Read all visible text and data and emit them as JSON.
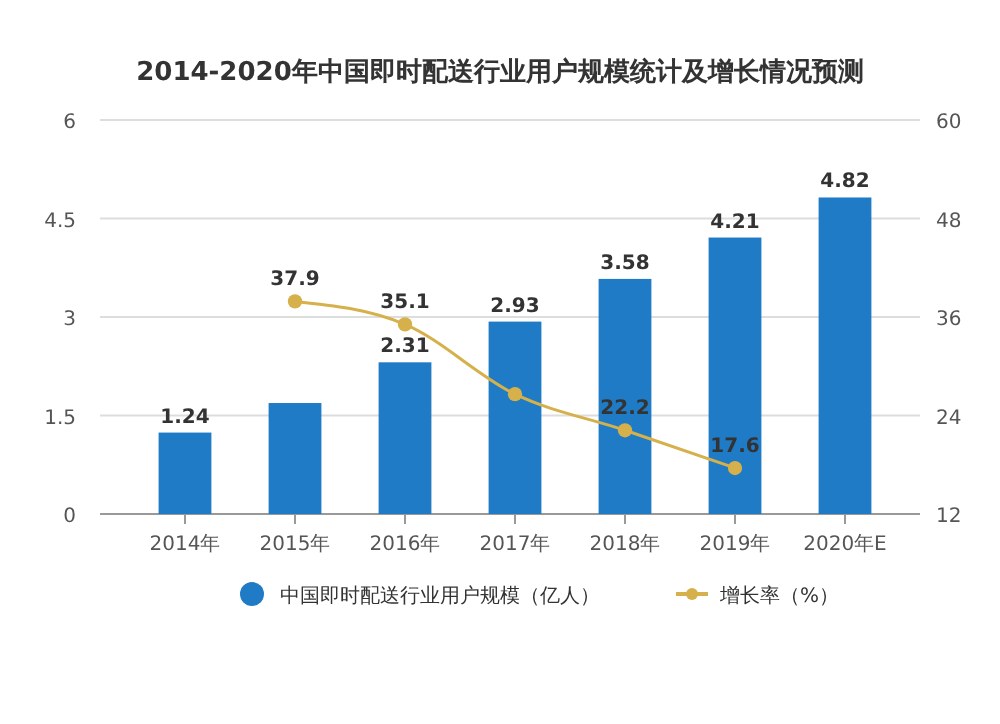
{
  "chart_data": {
    "type": "bar",
    "title": "2014-2020年中国即时配送行业用户规模统计及增长情况预测",
    "categories": [
      "2014年",
      "2015年",
      "2016年",
      "2017年",
      "2018年",
      "2019年",
      "2020年E"
    ],
    "series": [
      {
        "name": "中国即时配送行业用户规模（亿人）",
        "type": "bar",
        "color": "#1f7bc6",
        "values": [
          1.24,
          1.69,
          2.31,
          2.93,
          3.58,
          4.21,
          4.82
        ],
        "value_labels": [
          "1.24",
          null,
          "2.31",
          "2.93",
          "3.58",
          "4.21",
          "4.82"
        ]
      },
      {
        "name": "增长率（%）",
        "type": "line",
        "axis": "y2",
        "color": "#d6b04a",
        "values": [
          null,
          37.9,
          35.1,
          26.6,
          22.2,
          17.6,
          null
        ],
        "value_labels": [
          null,
          "37.9",
          "35.1",
          null,
          "22.2",
          "17.6",
          null
        ]
      }
    ],
    "ylim": [
      0,
      6
    ],
    "yticks": [
      0,
      1.5,
      3,
      4.5,
      6
    ],
    "y2lim": [
      12,
      60
    ],
    "y2ticks": [
      12,
      24,
      36,
      48,
      60
    ],
    "grid": "y",
    "legend": "bottom",
    "marker": "circle",
    "line_style": "solid"
  }
}
